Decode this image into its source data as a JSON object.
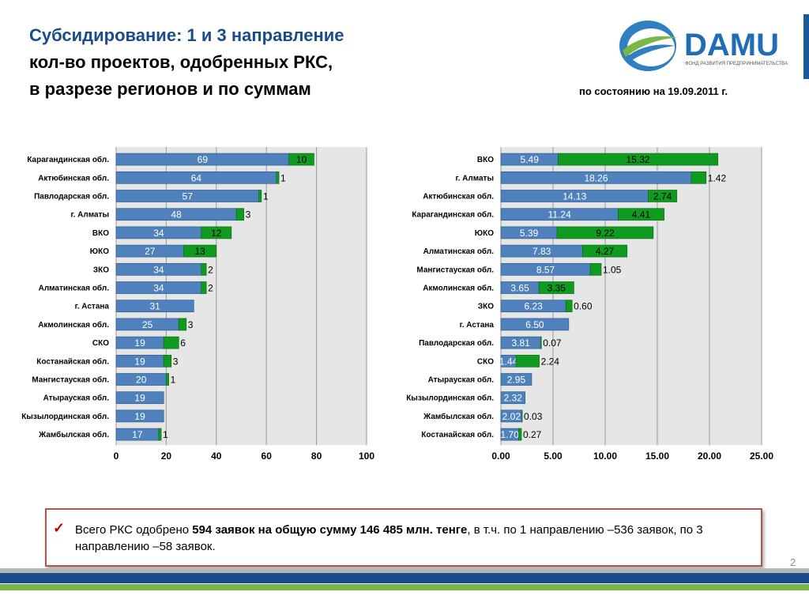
{
  "header": {
    "title_line1": "Субсидирование: 1 и 3 направление",
    "title_line2": "кол-во проектов, одобренных РКС,",
    "title_line3": "в разрезе регионов и по суммам",
    "date_note": "по состоянию на 19.09.2011 г.",
    "logo_text": "DAMU",
    "logo_subtext": "ФОНД РАЗВИТИЯ ПРЕДПРИНИМАТЕЛЬСТВА"
  },
  "colors": {
    "blue": "#4f81bd",
    "green": "#0f9b1f",
    "title_blue": "#1a4c8c",
    "plot_bg": "#e6e6e6"
  },
  "chart_data": [
    {
      "type": "bar",
      "orientation": "horizontal",
      "stacked": true,
      "categories": [
        "Карагандинская обл.",
        "Актюбинская обл.",
        "Павлодарская обл.",
        "г. Алматы",
        "ВКО",
        "ЮКО",
        "ЗКО",
        "Алматинская обл.",
        "г. Астана",
        "Акмолинская обл.",
        "СКО",
        "Костанайская обл.",
        "Мангистауская обл.",
        "Атырауская обл.",
        "Кызылординская обл.",
        "Жамбылская обл."
      ],
      "series": [
        {
          "values": [
            69,
            64,
            57,
            48,
            34,
            27,
            34,
            34,
            31,
            25,
            19,
            19,
            20,
            19,
            19,
            17
          ],
          "labels": [
            "69",
            "64",
            "57",
            "48",
            "34",
            "27",
            "34",
            "34",
            "31",
            "25",
            "19",
            "19",
            "20",
            "19",
            "19",
            "17"
          ]
        },
        {
          "values": [
            10,
            1,
            1,
            3,
            12,
            13,
            2,
            2,
            0,
            3,
            6,
            3,
            1,
            0,
            0,
            1
          ],
          "labels": [
            "10",
            "1",
            "1",
            "3",
            "12",
            "13",
            "2",
            "2",
            "",
            "3",
            "6",
            "3",
            "1",
            "",
            "",
            "1"
          ]
        }
      ],
      "xlim": [
        0,
        100
      ],
      "xticks": [
        "0",
        "20",
        "40",
        "60",
        "80",
        "100"
      ],
      "grid": true
    },
    {
      "type": "bar",
      "orientation": "horizontal",
      "stacked": true,
      "categories": [
        "ВКО",
        "г. Алматы",
        "Актюбинская обл.",
        "Карагандинская обл.",
        "ЮКО",
        "Алматинская обл.",
        "Мангистауская обл.",
        "Акмолинская обл.",
        "ЗКО",
        "г. Астана",
        "Павлодарская обл.",
        "СКО",
        "Атырауская обл.",
        "Кызылординская обл.",
        "Жамбылская обл.",
        "Костанайская обл."
      ],
      "series": [
        {
          "values": [
            5.49,
            18.26,
            14.13,
            11.24,
            5.39,
            7.83,
            8.57,
            3.65,
            6.23,
            6.5,
            3.81,
            1.44,
            2.95,
            2.32,
            2.02,
            1.7
          ],
          "labels": [
            "5.49",
            "18.26",
            "14.13",
            "11.24",
            "5.39",
            "7.83",
            "8.57",
            "3.65",
            "6.23",
            "6.50",
            "3.81",
            "1.44",
            "2.95",
            "2.32",
            "2.02",
            "1.70"
          ]
        },
        {
          "values": [
            15.32,
            1.42,
            2.74,
            4.41,
            9.22,
            4.27,
            1.05,
            3.35,
            0.6,
            0,
            0.07,
            2.24,
            0,
            0,
            0.03,
            0.27
          ],
          "labels": [
            "15.32",
            "1.42",
            "2.74",
            "4.41",
            "9.22",
            "4.27",
            "1.05",
            "3.35",
            "0.60",
            "",
            "0.07",
            "2.24",
            "",
            "",
            "0.03",
            "0.27"
          ]
        }
      ],
      "xlim": [
        0,
        25
      ],
      "xticks": [
        "0.00",
        "5.00",
        "10.00",
        "15.00",
        "20.00",
        "25.00"
      ],
      "grid": true
    }
  ],
  "summary": {
    "prefix": "Всего РКС одобрено ",
    "bold": "594 заявок на общую сумму 146 485 млн. тенге",
    "suffix": ", в т.ч. по 1 направлению –536 заявок, по 3 направлению –58 заявок."
  },
  "page_number": "2"
}
